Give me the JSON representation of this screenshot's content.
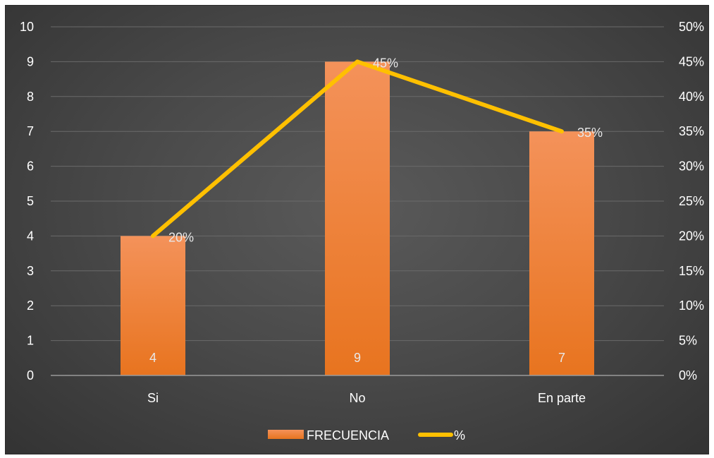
{
  "chart_data": {
    "type": "bar",
    "categories": [
      "Si",
      "No",
      "En parte"
    ],
    "series": [
      {
        "name": "FRECUENCIA",
        "type": "bar",
        "axis": "left",
        "values": [
          4,
          9,
          7
        ],
        "data_labels": [
          "4",
          "9",
          "7"
        ],
        "color": "#f0842c"
      },
      {
        "name": "%",
        "type": "line",
        "axis": "right",
        "values": [
          20,
          45,
          35
        ],
        "data_labels": [
          "20%",
          "45%",
          "35%"
        ],
        "color": "#ffc000"
      }
    ],
    "y_left": {
      "ylim": [
        0,
        10
      ],
      "ticks": [
        "0",
        "1",
        "2",
        "3",
        "4",
        "5",
        "6",
        "7",
        "8",
        "9",
        "10"
      ]
    },
    "y_right": {
      "ylim": [
        0,
        50
      ],
      "ticks": [
        "0%",
        "5%",
        "10%",
        "15%",
        "20%",
        "25%",
        "30%",
        "35%",
        "40%",
        "45%",
        "50%"
      ]
    },
    "grid": true,
    "legend": {
      "placement": "bottom"
    },
    "title": "",
    "xlabel": "",
    "ylabel": ""
  },
  "colors": {
    "bar_top": "#f4925a",
    "bar_bottom": "#e8741f",
    "line": "#ffc000",
    "grid": "#6a6a6a",
    "axis": "#9a9a9a",
    "text": "#ffffff"
  }
}
